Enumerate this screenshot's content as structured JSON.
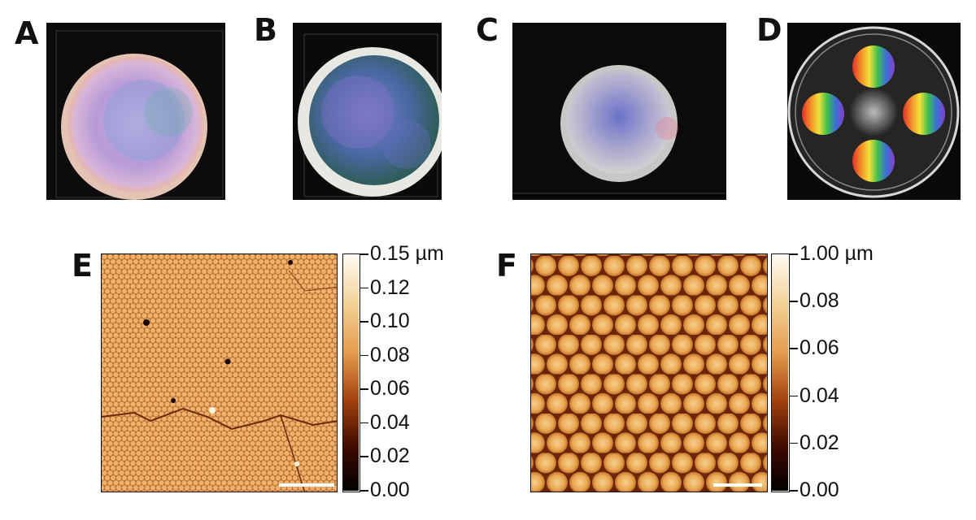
{
  "panels": {
    "a": {
      "label": "A"
    },
    "b": {
      "label": "B"
    },
    "c": {
      "label": "C"
    },
    "d": {
      "label": "D"
    },
    "e": {
      "label": "E",
      "colorbar_ticks": [
        "0.15 µm",
        "0.12",
        "0.10",
        "0.08",
        "0.06",
        "0.04",
        "0.02",
        "0.00"
      ]
    },
    "f": {
      "label": "F",
      "colorbar_ticks": [
        "1.00 µm",
        "0.08",
        "0.06",
        "0.04",
        "0.02",
        "0.00"
      ]
    }
  },
  "colors": {
    "afm_high": "#fdf3dc",
    "afm_mid": "#e7a85a",
    "afm_low": "#6b1d05",
    "afm_zero": "#000000"
  }
}
